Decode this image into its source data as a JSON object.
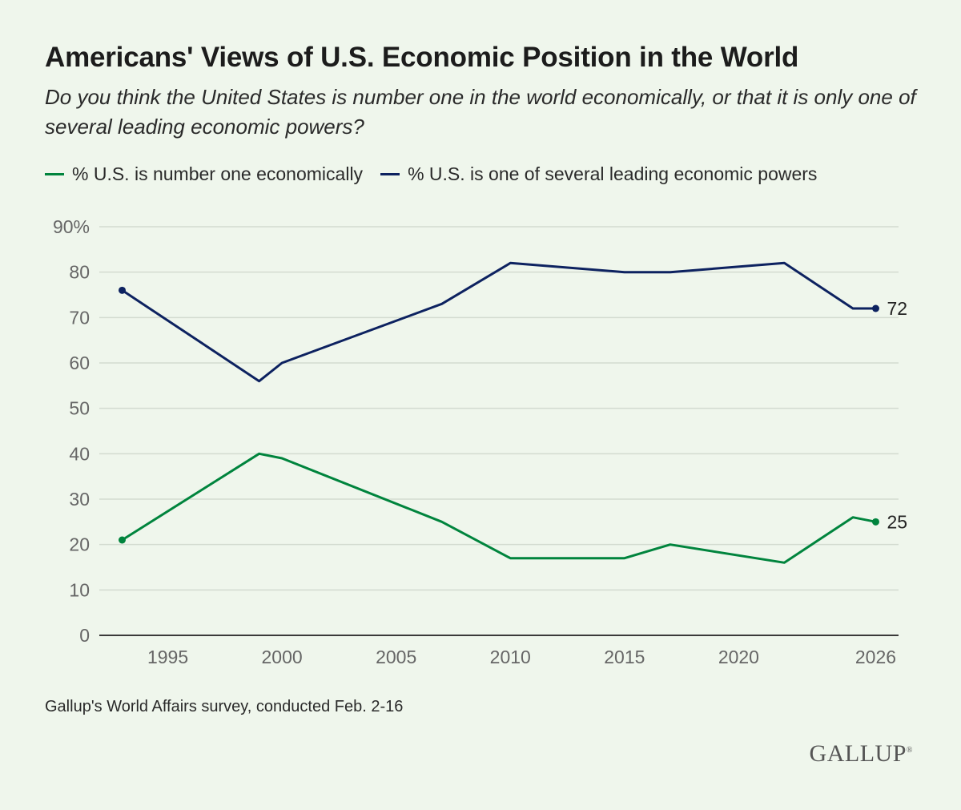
{
  "title": "Americans' Views of U.S. Economic Position in the World",
  "subtitle": "Do you think the United States is number one in the world economically, or that it is only one of several leading economic powers?",
  "source": "Gallup's World Affairs survey, conducted Feb. 2-16",
  "logo_text": "GALLUP",
  "colors": {
    "number_one": "#00843d",
    "several": "#0d2260",
    "grid": "#d3dbd0",
    "axis": "#3a3a3a",
    "tick_text": "#666666"
  },
  "chart_data": {
    "type": "line",
    "xlim": [
      1992,
      2027
    ],
    "ylim": [
      0,
      90
    ],
    "x_ticks": [
      1995,
      2000,
      2005,
      2010,
      2015,
      2020,
      2026
    ],
    "y_ticks": [
      0,
      10,
      20,
      30,
      40,
      50,
      60,
      70,
      80,
      90
    ],
    "y_tick_labels": [
      "0",
      "10",
      "20",
      "30",
      "40",
      "50",
      "60",
      "70",
      "80",
      "90%"
    ],
    "grid": true,
    "legend_position": "top-left",
    "series": [
      {
        "key": "number_one",
        "name": "% U.S. is number one economically",
        "x": [
          1993,
          1999,
          2000,
          2007,
          2010,
          2015,
          2017,
          2022,
          2025,
          2026
        ],
        "values": [
          21,
          40,
          39,
          25,
          17,
          17,
          20,
          16,
          26,
          25
        ],
        "end_label": "25"
      },
      {
        "key": "several",
        "name": "% U.S. is one of several leading economic powers",
        "x": [
          1993,
          1999,
          2000,
          2007,
          2010,
          2015,
          2017,
          2022,
          2025,
          2026
        ],
        "values": [
          76,
          56,
          60,
          73,
          82,
          80,
          80,
          82,
          72,
          72
        ],
        "end_label": "72"
      }
    ]
  }
}
